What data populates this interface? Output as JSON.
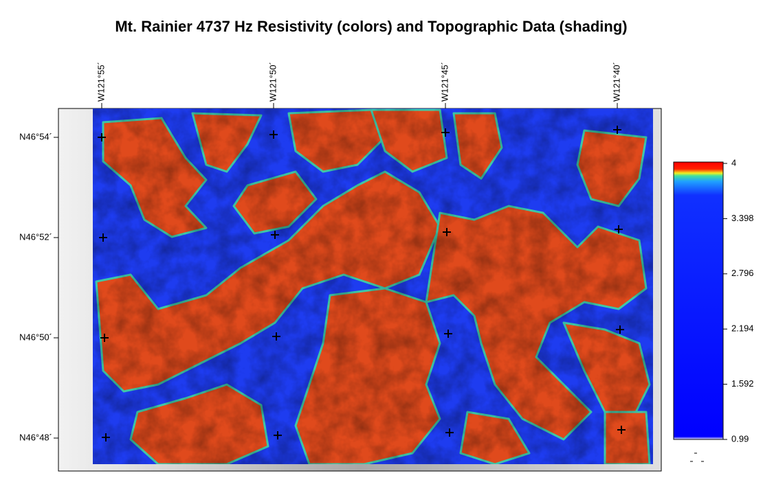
{
  "title": "Mt. Rainier 4737 Hz Resistivity (colors) and Topographic Data (shading)",
  "longitudes": [
    "W121°55´",
    "W121°50´",
    "W121°45´",
    "W121°40´"
  ],
  "latitudes": [
    "N46°54´",
    "N46°52´",
    "N46°50´",
    "N46°48´"
  ],
  "colorbar": {
    "lim": [
      0.99,
      4
    ],
    "ticks": [
      4,
      3.398,
      2.796,
      2.194,
      1.592,
      0.99
    ]
  }
}
